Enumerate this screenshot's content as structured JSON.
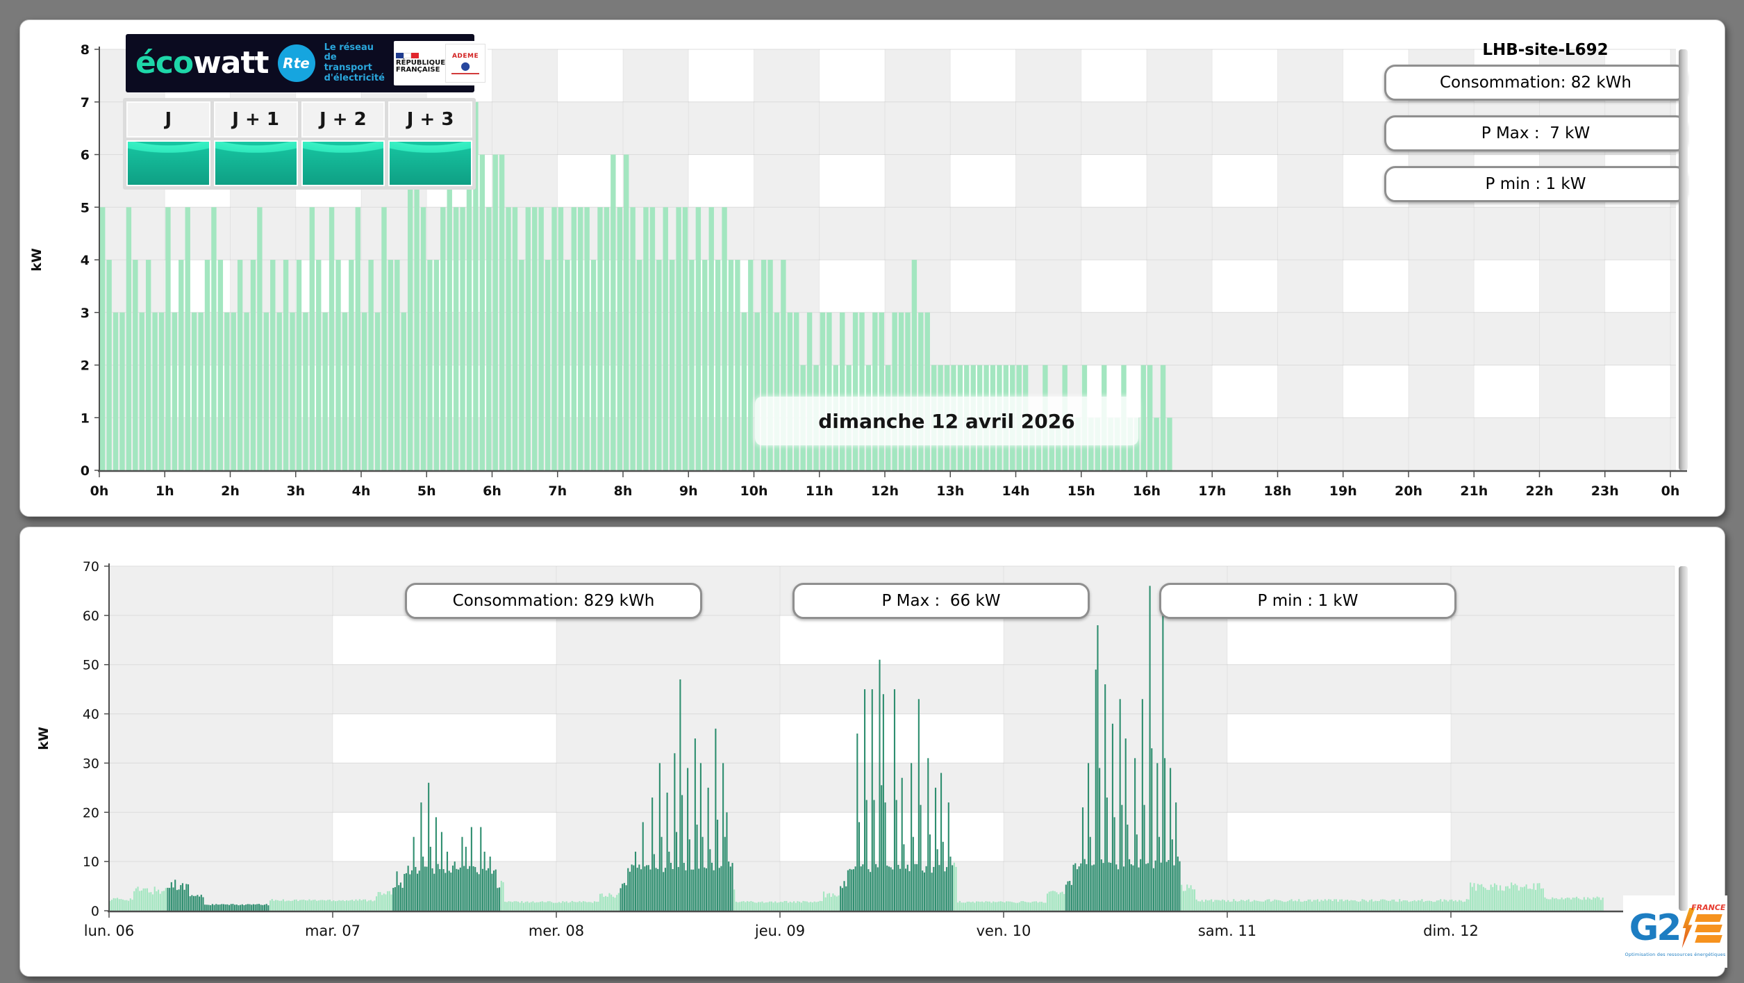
{
  "top_panel": {
    "title": "LHB-site-L692",
    "stats": [
      "Consommation: 82 kWh",
      "P Max :  7 kW",
      "P min : 1 kW"
    ],
    "date_label": "dimanche 12 avril 2026",
    "tabs": [
      "J",
      "J + 1",
      "J + 2",
      "J + 3"
    ],
    "brand": {
      "eco": "éco",
      "watt": "watt",
      "rte": "Rte",
      "rte_tagline": "Le réseau\nde transport\nd'électricité",
      "republique": "RÉPUBLIQUE\nFRANÇAISE",
      "ademe": "ADEME"
    }
  },
  "bottom_panel": {
    "stats": [
      "Consommation: 829 kWh",
      "P Max :  66 kW",
      "P min : 1 kW"
    ],
    "logo": {
      "g2": "G2",
      "france": "FRANCE",
      "tagline": "Optimisation des ressources énergétiques"
    }
  },
  "colors": {
    "bar_light": "#a3e6c0",
    "bar_dark": "#2e8e6f",
    "band_gray": "#efefef",
    "axis": "#4d4d4d"
  },
  "chart_data": [
    {
      "type": "bar",
      "title": "LHB-site-L692",
      "annotation": "dimanche 12 avril 2026",
      "ylabel": "kW",
      "ylim": [
        0,
        8
      ],
      "yticks": [
        "0",
        "1",
        "2",
        "3",
        "4",
        "5",
        "6",
        "7",
        "8"
      ],
      "xticks": [
        "0h",
        "1h",
        "2h",
        "3h",
        "4h",
        "5h",
        "6h",
        "7h",
        "8h",
        "9h",
        "10h",
        "11h",
        "12h",
        "13h",
        "14h",
        "15h",
        "16h",
        "17h",
        "18h",
        "19h",
        "20h",
        "21h",
        "22h",
        "23h",
        "0h"
      ],
      "interval_hours": 0.1,
      "bar_color": "#a3e6c0",
      "stats": {
        "consommation_kwh": 82,
        "p_max_kw": 7,
        "p_min_kw": 1
      },
      "values": [
        5,
        4,
        3,
        3,
        5,
        4,
        3,
        4,
        3,
        3,
        5,
        3,
        4,
        5,
        3,
        3,
        4,
        5,
        4,
        3,
        3,
        4,
        3,
        4,
        5,
        3,
        4,
        3,
        4,
        3,
        4,
        3,
        5,
        4,
        3,
        5,
        4,
        3,
        4,
        5,
        3,
        4,
        3,
        5,
        4,
        4,
        3,
        6,
        6,
        5,
        4,
        4,
        5,
        6,
        5,
        5,
        6,
        7,
        6,
        5,
        6,
        6,
        5,
        5,
        4,
        5,
        5,
        5,
        4,
        5,
        5,
        4,
        5,
        5,
        5,
        4,
        5,
        5,
        6,
        5,
        6,
        5,
        4,
        5,
        5,
        4,
        5,
        4,
        5,
        5,
        4,
        5,
        4,
        5,
        4,
        5,
        4,
        4,
        3,
        4,
        3,
        4,
        4,
        3,
        4,
        3,
        3,
        2,
        3,
        2,
        3,
        3,
        2,
        3,
        2,
        3,
        3,
        2,
        3,
        3,
        2,
        3,
        3,
        3,
        4,
        3,
        3,
        2,
        2,
        2,
        2,
        2,
        2,
        2,
        2,
        2,
        2,
        2,
        2,
        2,
        2,
        2,
        1,
        1,
        2,
        1,
        1,
        2,
        1,
        1,
        2,
        1,
        1,
        2,
        1,
        1,
        2,
        1,
        1,
        2,
        2,
        1,
        2,
        1
      ]
    },
    {
      "type": "bar",
      "ylabel": "kW",
      "ylim": [
        0,
        70
      ],
      "yticks": [
        "0",
        "10",
        "20",
        "30",
        "40",
        "50",
        "60",
        "70"
      ],
      "xticks": [
        "lun. 06",
        "mar. 07",
        "mer. 08",
        "jeu. 09",
        "ven. 10",
        "sam. 11",
        "dim. 12"
      ],
      "interval_hours": 0.2,
      "colors": {
        "light": "#a3e6c0",
        "dark": "#2e8e6f"
      },
      "stats": {
        "consommation_kwh": 829,
        "p_max_kw": 66,
        "p_min_kw": 1
      },
      "segments": [
        [
          0,
          2.5,
          2.0,
          0.7,
          "l",
          []
        ],
        [
          2.5,
          6.2,
          3.2,
          1.8,
          "l",
          []
        ],
        [
          6.2,
          8.6,
          4.2,
          1.5,
          "d",
          [
            [
              6.6,
              5.8
            ],
            [
              7.1,
              6.3
            ],
            [
              7.7,
              5.6
            ]
          ]
        ],
        [
          8.6,
          10.2,
          2.6,
          0.8,
          "d",
          []
        ],
        [
          10.2,
          17.2,
          1.1,
          0.3,
          "d",
          []
        ],
        [
          17.2,
          28.6,
          1.9,
          0.5,
          "l",
          []
        ],
        [
          28.6,
          30.3,
          2.8,
          1.2,
          "l",
          []
        ],
        [
          30.3,
          31.6,
          4.5,
          1.8,
          "d",
          [
            [
              30.9,
              8
            ]
          ]
        ],
        [
          31.6,
          41.6,
          7.4,
          1.8,
          "d",
          [
            [
              32.6,
              15
            ],
            [
              33.4,
              22
            ],
            [
              34.2,
              26
            ],
            [
              35.0,
              19
            ],
            [
              35.6,
              16
            ],
            [
              36.3,
              12
            ],
            [
              37.0,
              10
            ],
            [
              37.7,
              15
            ],
            [
              38.3,
              13
            ],
            [
              38.9,
              17
            ],
            [
              39.7,
              17
            ],
            [
              40.3,
              12
            ],
            [
              40.9,
              11
            ]
          ]
        ],
        [
          41.6,
          42.0,
          4.0,
          1.0,
          "d",
          []
        ],
        [
          42.0,
          42.4,
          5.5,
          0.8,
          "l",
          []
        ],
        [
          42.4,
          52.6,
          1.6,
          0.4,
          "l",
          []
        ],
        [
          52.6,
          54.8,
          2.6,
          1.3,
          "l",
          []
        ],
        [
          54.8,
          55.6,
          4.2,
          1.6,
          "d",
          []
        ],
        [
          55.6,
          66.9,
          7.8,
          2.0,
          "d",
          [
            [
              56.4,
              12
            ],
            [
              57.3,
              18
            ],
            [
              58.2,
              23
            ],
            [
              59.0,
              30
            ],
            [
              59.7,
              24
            ],
            [
              60.5,
              32
            ],
            [
              61.1,
              47
            ],
            [
              61.9,
              29
            ],
            [
              62.7,
              35
            ],
            [
              63.4,
              30
            ],
            [
              64.2,
              25
            ],
            [
              64.9,
              37
            ],
            [
              65.7,
              30
            ],
            [
              66.3,
              20
            ]
          ]
        ],
        [
          66.9,
          67.3,
          4.0,
          1.0,
          "l",
          []
        ],
        [
          67.3,
          76.6,
          1.6,
          0.4,
          "l",
          []
        ],
        [
          76.6,
          78.4,
          2.7,
          1.3,
          "l",
          []
        ],
        [
          78.4,
          79.2,
          4.5,
          1.6,
          "d",
          []
        ],
        [
          79.2,
          90.6,
          7.6,
          1.9,
          "d",
          [
            [
              80.2,
              36
            ],
            [
              80.9,
              45
            ],
            [
              81.7,
              45
            ],
            [
              82.5,
              51
            ],
            [
              83.1,
              44
            ],
            [
              84.2,
              45
            ],
            [
              85.0,
              27
            ],
            [
              85.9,
              30
            ],
            [
              86.8,
              43
            ],
            [
              87.7,
              31
            ],
            [
              88.5,
              25
            ],
            [
              89.3,
              28
            ],
            [
              90.1,
              22
            ]
          ]
        ],
        [
          90.6,
          91.0,
          8.5,
          1.5,
          "l",
          []
        ],
        [
          91.0,
          100.6,
          1.6,
          0.4,
          "l",
          []
        ],
        [
          100.6,
          102.6,
          2.8,
          1.4,
          "l",
          []
        ],
        [
          102.6,
          103.4,
          5.0,
          2.0,
          "d",
          []
        ],
        [
          103.4,
          114.9,
          8.4,
          2.2,
          "d",
          [
            [
              104.4,
              21
            ],
            [
              105.1,
              30
            ],
            [
              105.7,
              49
            ],
            [
              106.1,
              58
            ],
            [
              106.8,
              46
            ],
            [
              107.5,
              38
            ],
            [
              108.3,
              43
            ],
            [
              109.1,
              35
            ],
            [
              109.9,
              31
            ],
            [
              110.7,
              43
            ],
            [
              111.5,
              66
            ],
            [
              112.3,
              30
            ],
            [
              113.1,
              62
            ],
            [
              113.8,
              29
            ],
            [
              114.4,
              22
            ]
          ]
        ],
        [
          114.9,
          116.5,
          4.0,
          1.8,
          "l",
          []
        ],
        [
          116.5,
          146.0,
          1.8,
          0.6,
          "l",
          []
        ],
        [
          146.0,
          154.0,
          4.0,
          1.8,
          "l",
          []
        ],
        [
          154.0,
          160.4,
          2.2,
          0.7,
          "l",
          []
        ]
      ]
    }
  ]
}
